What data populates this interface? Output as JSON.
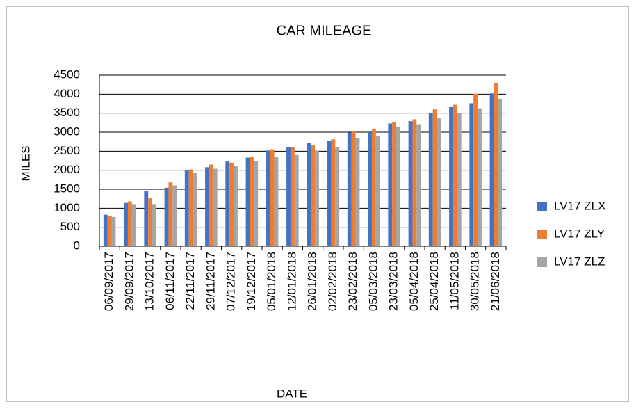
{
  "chart_data": {
    "type": "bar",
    "title": "CAR MILEAGE",
    "x_label": "DATE",
    "y_label": "MILES",
    "categories": [
      "06/09/2017",
      "29/09/2017",
      "13/10/2017",
      "06/11/2017",
      "22/11/2017",
      "29/11/2017",
      "07/12/2017",
      "19/12/2017",
      "05/01/2018",
      "12/01/2018",
      "26/01/2018",
      "02/02/2018",
      "23/02/2018",
      "05/03/2018",
      "23/03/2018",
      "05/04/2018",
      "25/04/2018",
      "11/05/2018",
      "30/05/2018",
      "21/06/2018"
    ],
    "series": [
      {
        "name": "LV17 ZLX",
        "color": "#4472c4",
        "values": [
          830,
          1140,
          1450,
          1540,
          2010,
          2080,
          2230,
          2330,
          2520,
          2600,
          2710,
          2780,
          2990,
          3030,
          3230,
          3290,
          3510,
          3660,
          3760,
          4020
        ]
      },
      {
        "name": "LV17 ZLY",
        "color": "#ed7d31",
        "values": [
          800,
          1180,
          1260,
          1680,
          2020,
          2150,
          2200,
          2360,
          2550,
          2600,
          2650,
          2810,
          3030,
          3080,
          3270,
          3340,
          3600,
          3720,
          4010,
          4290
        ]
      },
      {
        "name": "LV17 ZLZ",
        "color": "#a5a5a5",
        "values": [
          770,
          1110,
          1110,
          1600,
          1930,
          2040,
          2120,
          2240,
          2340,
          2400,
          2520,
          2610,
          2850,
          2910,
          3150,
          3210,
          3380,
          3500,
          3630,
          3870
        ]
      }
    ],
    "ylim": [
      0,
      4500
    ],
    "yticks": [
      0,
      500,
      1000,
      1500,
      2000,
      2500,
      3000,
      3500,
      4000,
      4500
    ],
    "grid": true,
    "legend": "right"
  }
}
